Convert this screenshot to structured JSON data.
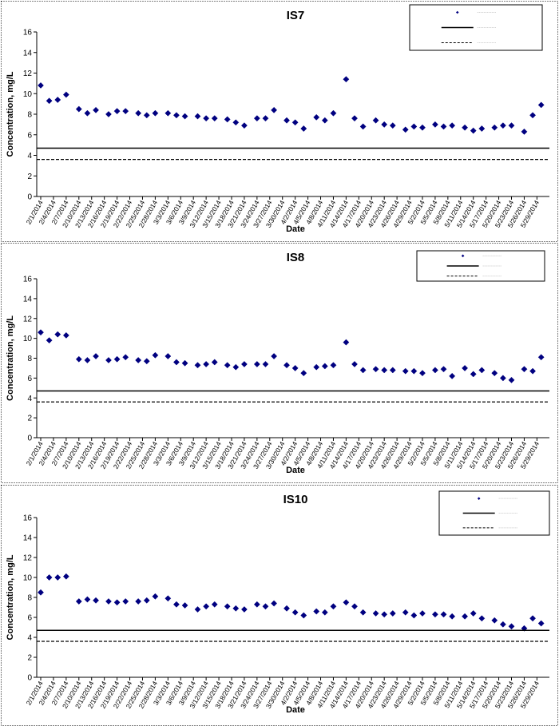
{
  "chart_data": [
    {
      "type": "scatter",
      "title": "IS7",
      "xlabel": "Date",
      "ylabel": "Concentration, mg/L",
      "ylim": [
        0,
        16
      ],
      "yticks": [
        "0",
        "2",
        "4",
        "6",
        "8",
        "10",
        "12",
        "14",
        "16"
      ],
      "x_tick_labels": [
        "2/1/2014",
        "2/4/2014",
        "2/7/2014",
        "2/10/2014",
        "2/13/2014",
        "2/16/2014",
        "2/19/2014",
        "2/22/2014",
        "2/25/2014",
        "2/28/2014",
        "3/3/2014",
        "3/6/2014",
        "3/9/2014",
        "3/12/2014",
        "3/15/2014",
        "3/18/2014",
        "3/21/2014",
        "3/24/2014",
        "3/27/2014",
        "3/30/2014",
        "4/2/2014",
        "4/5/2014",
        "4/8/2014",
        "4/11/2014",
        "4/14/2014",
        "4/17/2014",
        "4/20/2014",
        "4/23/2014",
        "4/26/2014",
        "4/29/2014",
        "5/2/2014",
        "5/5/2014",
        "5/8/2014",
        "5/11/2014",
        "5/14/2014",
        "5/17/2014",
        "5/20/2014",
        "5/23/2014",
        "5/26/2014",
        "5/29/2014"
      ],
      "grid": false,
      "legend_position": "top-right",
      "series": [
        {
          "marker": "diamond",
          "color": "#000080",
          "points": [
            [
              "2/1/2014",
              10.8
            ],
            [
              "2/3/2014",
              9.3
            ],
            [
              "2/5/2014",
              9.4
            ],
            [
              "2/7/2014",
              9.9
            ],
            [
              "2/10/2014",
              8.5
            ],
            [
              "2/12/2014",
              8.1
            ],
            [
              "2/14/2014",
              8.4
            ],
            [
              "2/17/2014",
              8.0
            ],
            [
              "2/19/2014",
              8.3
            ],
            [
              "2/21/2014",
              8.3
            ],
            [
              "2/24/2014",
              8.1
            ],
            [
              "2/26/2014",
              7.9
            ],
            [
              "2/28/2014",
              8.1
            ],
            [
              "3/3/2014",
              8.1
            ],
            [
              "3/5/2014",
              7.9
            ],
            [
              "3/7/2014",
              7.8
            ],
            [
              "3/10/2014",
              7.8
            ],
            [
              "3/12/2014",
              7.6
            ],
            [
              "3/14/2014",
              7.6
            ],
            [
              "3/17/2014",
              7.5
            ],
            [
              "3/19/2014",
              7.2
            ],
            [
              "3/21/2014",
              6.9
            ],
            [
              "3/24/2014",
              7.6
            ],
            [
              "3/26/2014",
              7.6
            ],
            [
              "3/28/2014",
              8.4
            ],
            [
              "3/31/2014",
              7.4
            ],
            [
              "4/2/2014",
              7.2
            ],
            [
              "4/4/2014",
              6.6
            ],
            [
              "4/7/2014",
              7.7
            ],
            [
              "4/9/2014",
              7.4
            ],
            [
              "4/11/2014",
              8.1
            ],
            [
              "4/14/2014",
              11.4
            ],
            [
              "4/16/2014",
              7.6
            ],
            [
              "4/18/2014",
              6.8
            ],
            [
              "4/21/2014",
              7.4
            ],
            [
              "4/23/2014",
              7.0
            ],
            [
              "4/25/2014",
              6.9
            ],
            [
              "4/28/2014",
              6.5
            ],
            [
              "4/30/2014",
              6.8
            ],
            [
              "5/2/2014",
              6.7
            ],
            [
              "5/5/2014",
              7.0
            ],
            [
              "5/7/2014",
              6.8
            ],
            [
              "5/9/2014",
              6.9
            ],
            [
              "5/12/2014",
              6.7
            ],
            [
              "5/14/2014",
              6.4
            ],
            [
              "5/16/2014",
              6.6
            ],
            [
              "5/19/2014",
              6.7
            ],
            [
              "5/21/2014",
              6.9
            ],
            [
              "5/23/2014",
              6.9
            ],
            [
              "5/26/2014",
              6.3
            ],
            [
              "5/28/2014",
              7.9
            ],
            [
              "5/30/2014",
              8.9
            ]
          ]
        },
        {
          "line": "solid",
          "color": "#000000",
          "value": 4.7
        },
        {
          "line": "dashed",
          "color": "#000000",
          "value": 3.6
        }
      ]
    },
    {
      "type": "scatter",
      "title": "IS8",
      "xlabel": "Date",
      "ylabel": "Concentration, mg/L",
      "ylim": [
        0,
        16
      ],
      "yticks": [
        "0",
        "2",
        "4",
        "6",
        "8",
        "10",
        "12",
        "14",
        "16"
      ],
      "x_tick_labels": [
        "2/1/2014",
        "2/4/2014",
        "2/7/2014",
        "2/10/2014",
        "2/13/2014",
        "2/16/2014",
        "2/19/2014",
        "2/22/2014",
        "2/25/2014",
        "2/28/2014",
        "3/3/2014",
        "3/6/2014",
        "3/9/2014",
        "3/12/2014",
        "3/15/2014",
        "3/18/2014",
        "3/21/2014",
        "3/24/2014",
        "3/27/2014",
        "3/30/2014",
        "4/2/2014",
        "4/5/2014",
        "4/8/2014",
        "4/11/2014",
        "4/14/2014",
        "4/17/2014",
        "4/20/2014",
        "4/23/2014",
        "4/26/2014",
        "4/29/2014",
        "5/2/2014",
        "5/5/2014",
        "5/8/2014",
        "5/11/2014",
        "5/14/2014",
        "5/17/2014",
        "5/20/2014",
        "5/23/2014",
        "5/26/2014",
        "5/29/2014"
      ],
      "grid": false,
      "legend_position": "top-right",
      "series": [
        {
          "marker": "diamond",
          "color": "#000080",
          "points": [
            [
              "2/1/2014",
              10.6
            ],
            [
              "2/3/2014",
              9.8
            ],
            [
              "2/5/2014",
              10.4
            ],
            [
              "2/7/2014",
              10.3
            ],
            [
              "2/10/2014",
              7.9
            ],
            [
              "2/12/2014",
              7.8
            ],
            [
              "2/14/2014",
              8.2
            ],
            [
              "2/17/2014",
              7.8
            ],
            [
              "2/19/2014",
              7.9
            ],
            [
              "2/21/2014",
              8.1
            ],
            [
              "2/24/2014",
              7.8
            ],
            [
              "2/26/2014",
              7.7
            ],
            [
              "2/28/2014",
              8.3
            ],
            [
              "3/3/2014",
              8.2
            ],
            [
              "3/5/2014",
              7.6
            ],
            [
              "3/7/2014",
              7.5
            ],
            [
              "3/10/2014",
              7.3
            ],
            [
              "3/12/2014",
              7.4
            ],
            [
              "3/14/2014",
              7.6
            ],
            [
              "3/17/2014",
              7.3
            ],
            [
              "3/19/2014",
              7.1
            ],
            [
              "3/21/2014",
              7.4
            ],
            [
              "3/24/2014",
              7.4
            ],
            [
              "3/26/2014",
              7.4
            ],
            [
              "3/28/2014",
              8.2
            ],
            [
              "3/31/2014",
              7.3
            ],
            [
              "4/2/2014",
              7.0
            ],
            [
              "4/4/2014",
              6.5
            ],
            [
              "4/7/2014",
              7.1
            ],
            [
              "4/9/2014",
              7.2
            ],
            [
              "4/11/2014",
              7.3
            ],
            [
              "4/14/2014",
              9.6
            ],
            [
              "4/16/2014",
              7.4
            ],
            [
              "4/18/2014",
              6.8
            ],
            [
              "4/21/2014",
              6.9
            ],
            [
              "4/23/2014",
              6.8
            ],
            [
              "4/25/2014",
              6.8
            ],
            [
              "4/28/2014",
              6.7
            ],
            [
              "4/30/2014",
              6.7
            ],
            [
              "5/2/2014",
              6.5
            ],
            [
              "5/5/2014",
              6.8
            ],
            [
              "5/7/2014",
              6.9
            ],
            [
              "5/9/2014",
              6.2
            ],
            [
              "5/12/2014",
              7.0
            ],
            [
              "5/14/2014",
              6.4
            ],
            [
              "5/16/2014",
              6.8
            ],
            [
              "5/19/2014",
              6.5
            ],
            [
              "5/21/2014",
              6.0
            ],
            [
              "5/23/2014",
              5.8
            ],
            [
              "5/26/2014",
              6.9
            ],
            [
              "5/28/2014",
              6.7
            ],
            [
              "5/30/2014",
              8.1
            ]
          ]
        },
        {
          "line": "solid",
          "color": "#000000",
          "value": 4.7
        },
        {
          "line": "dashed",
          "color": "#000000",
          "value": 3.6
        }
      ]
    },
    {
      "type": "scatter",
      "title": "IS10",
      "xlabel": "Date",
      "ylabel": "Concentration, mg/L",
      "ylim": [
        0,
        16
      ],
      "yticks": [
        "0",
        "2",
        "4",
        "6",
        "8",
        "10",
        "12",
        "14",
        "16"
      ],
      "x_tick_labels": [
        "2/1/2014",
        "2/4/2014",
        "2/7/2014",
        "2/10/2014",
        "2/13/2014",
        "2/16/2014",
        "2/19/2014",
        "2/22/2014",
        "2/25/2014",
        "2/28/2014",
        "3/3/2014",
        "3/6/2014",
        "3/9/2014",
        "3/12/2014",
        "3/15/2014",
        "3/18/2014",
        "3/21/2014",
        "3/24/2014",
        "3/27/2014",
        "3/30/2014",
        "4/2/2014",
        "4/5/2014",
        "4/8/2014",
        "4/11/2014",
        "4/14/2014",
        "4/17/2014",
        "4/20/2014",
        "4/23/2014",
        "4/26/2014",
        "4/29/2014",
        "5/2/2014",
        "5/5/2014",
        "5/8/2014",
        "5/11/2014",
        "5/14/2014",
        "5/17/2014",
        "5/20/2014",
        "5/23/2014",
        "5/26/2014",
        "5/29/2014"
      ],
      "grid": false,
      "legend_position": "top-right",
      "series": [
        {
          "marker": "diamond",
          "color": "#000080",
          "points": [
            [
              "2/1/2014",
              8.5
            ],
            [
              "2/3/2014",
              10.0
            ],
            [
              "2/5/2014",
              10.0
            ],
            [
              "2/7/2014",
              10.1
            ],
            [
              "2/10/2014",
              7.6
            ],
            [
              "2/12/2014",
              7.8
            ],
            [
              "2/14/2014",
              7.7
            ],
            [
              "2/17/2014",
              7.6
            ],
            [
              "2/19/2014",
              7.5
            ],
            [
              "2/21/2014",
              7.6
            ],
            [
              "2/24/2014",
              7.6
            ],
            [
              "2/26/2014",
              7.7
            ],
            [
              "2/28/2014",
              8.1
            ],
            [
              "3/3/2014",
              7.9
            ],
            [
              "3/5/2014",
              7.3
            ],
            [
              "3/7/2014",
              7.2
            ],
            [
              "3/10/2014",
              6.8
            ],
            [
              "3/12/2014",
              7.1
            ],
            [
              "3/14/2014",
              7.3
            ],
            [
              "3/17/2014",
              7.1
            ],
            [
              "3/19/2014",
              6.9
            ],
            [
              "3/21/2014",
              6.8
            ],
            [
              "3/24/2014",
              7.3
            ],
            [
              "3/26/2014",
              7.1
            ],
            [
              "3/28/2014",
              7.4
            ],
            [
              "3/31/2014",
              6.9
            ],
            [
              "4/2/2014",
              6.5
            ],
            [
              "4/4/2014",
              6.2
            ],
            [
              "4/7/2014",
              6.6
            ],
            [
              "4/9/2014",
              6.5
            ],
            [
              "4/11/2014",
              7.1
            ],
            [
              "4/14/2014",
              7.5
            ],
            [
              "4/16/2014",
              7.1
            ],
            [
              "4/18/2014",
              6.5
            ],
            [
              "4/21/2014",
              6.4
            ],
            [
              "4/23/2014",
              6.3
            ],
            [
              "4/25/2014",
              6.4
            ],
            [
              "4/28/2014",
              6.5
            ],
            [
              "4/30/2014",
              6.2
            ],
            [
              "5/2/2014",
              6.4
            ],
            [
              "5/5/2014",
              6.3
            ],
            [
              "5/7/2014",
              6.3
            ],
            [
              "5/9/2014",
              6.1
            ],
            [
              "5/12/2014",
              6.1
            ],
            [
              "5/14/2014",
              6.4
            ],
            [
              "5/16/2014",
              5.9
            ],
            [
              "5/19/2014",
              5.7
            ],
            [
              "5/21/2014",
              5.3
            ],
            [
              "5/23/2014",
              5.1
            ],
            [
              "5/26/2014",
              4.9
            ],
            [
              "5/28/2014",
              5.9
            ],
            [
              "5/30/2014",
              5.4
            ]
          ]
        },
        {
          "line": "solid",
          "color": "#000000",
          "value": 4.7
        },
        {
          "line": "dashed",
          "color": "#000000",
          "value": 3.6
        }
      ]
    }
  ]
}
